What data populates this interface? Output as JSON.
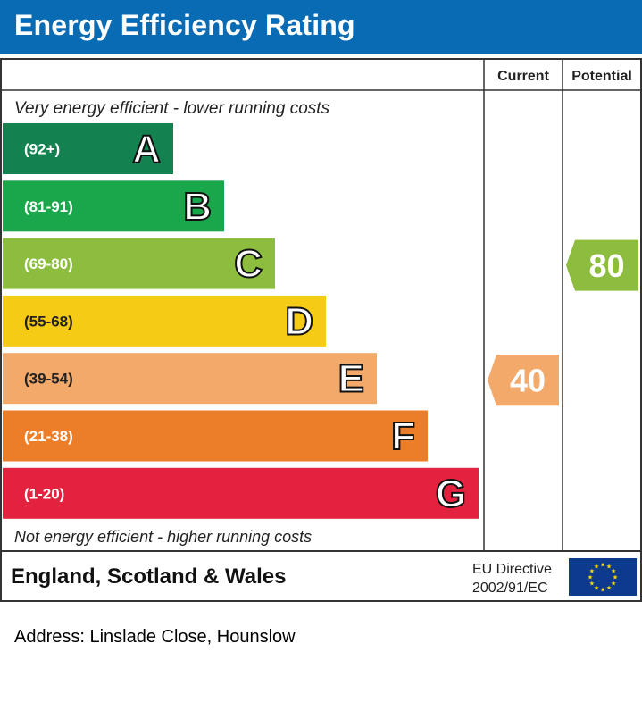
{
  "header": {
    "title": "Energy Efficiency Rating"
  },
  "columns": {
    "current": "Current",
    "potential": "Potential"
  },
  "top_note": "Very energy efficient - lower running costs",
  "bottom_note": "Not energy efficient - higher running costs",
  "footer": {
    "region": "England, Scotland & Wales",
    "directive_line1": "EU Directive",
    "directive_line2": "2002/91/EC"
  },
  "address": "Address: Linslade Close, Hounslow",
  "colors": {
    "header_bg": "#0a6bb5",
    "A": "#138150",
    "B": "#1aa74c",
    "C": "#8cbd3f",
    "D": "#f6cb15",
    "E": "#f2a96a",
    "F": "#ec7e2a",
    "G": "#e2223e",
    "eu_flag": "#0d3a8c",
    "eu_star": "#ffdc00"
  },
  "chart_data": {
    "type": "bar",
    "title": "Energy Efficiency Rating",
    "categories": [
      "A",
      "B",
      "C",
      "D",
      "E",
      "F",
      "G"
    ],
    "ranges": [
      "(92+)",
      "(81-91)",
      "(69-80)",
      "(55-68)",
      "(39-54)",
      "(21-38)",
      "(1-20)"
    ],
    "values": [
      1,
      2,
      3,
      4,
      5,
      6,
      7
    ],
    "colors": [
      "#138150",
      "#1aa74c",
      "#8cbd3f",
      "#f6cb15",
      "#f2a96a",
      "#ec7e2a",
      "#e2223e"
    ],
    "current": {
      "label": "Current",
      "value": 40,
      "band": "E",
      "color": "#f2a96a"
    },
    "potential": {
      "label": "Potential",
      "value": 80,
      "band": "C",
      "color": "#8cbd3f"
    }
  }
}
